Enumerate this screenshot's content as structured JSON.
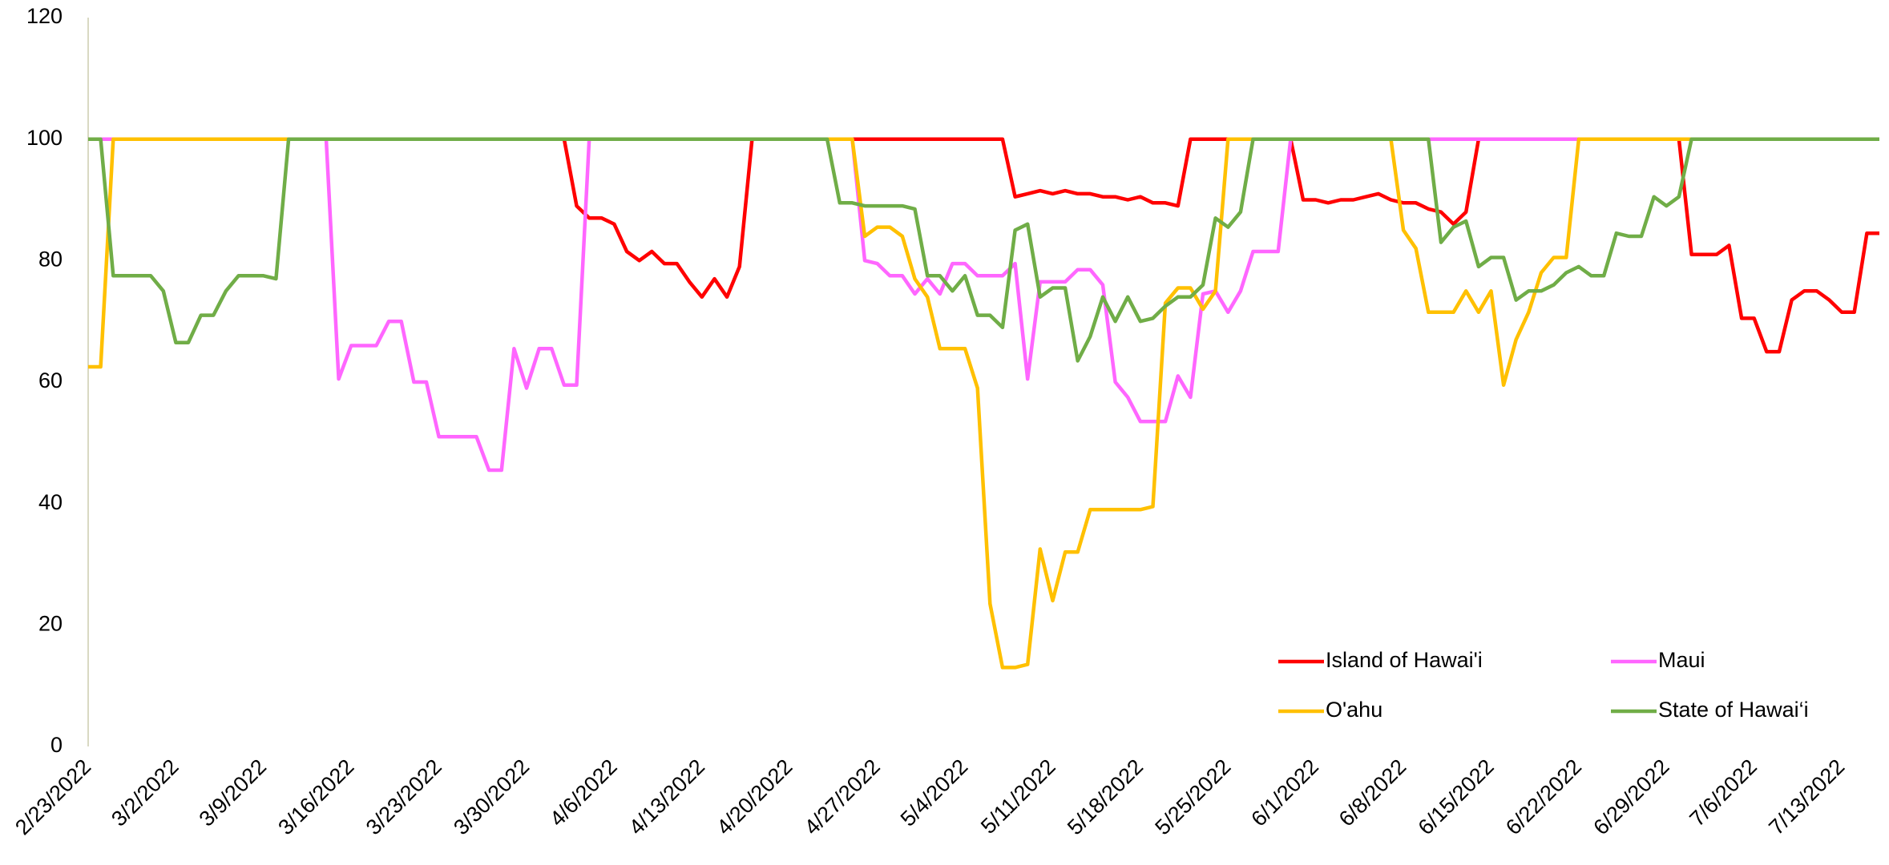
{
  "chart_data": {
    "type": "line",
    "categories": [
      "2/23/2022",
      null,
      null,
      null,
      null,
      null,
      null,
      "3/2/2022",
      null,
      null,
      null,
      null,
      null,
      null,
      "3/9/2022",
      null,
      null,
      null,
      null,
      null,
      null,
      "3/16/2022",
      null,
      null,
      null,
      null,
      null,
      null,
      "3/23/2022",
      null,
      null,
      null,
      null,
      null,
      null,
      "3/30/2022",
      null,
      null,
      null,
      null,
      null,
      null,
      "4/6/2022",
      null,
      null,
      null,
      null,
      null,
      null,
      "4/13/2022",
      null,
      null,
      null,
      null,
      null,
      null,
      "4/20/2022",
      null,
      null,
      null,
      null,
      null,
      null,
      "4/27/2022",
      null,
      null,
      null,
      null,
      null,
      null,
      "5/4/2022",
      null,
      null,
      null,
      null,
      null,
      null,
      "5/11/2022",
      null,
      null,
      null,
      null,
      null,
      null,
      "5/18/2022",
      null,
      null,
      null,
      null,
      null,
      null,
      "5/25/2022",
      null,
      null,
      null,
      null,
      null,
      null,
      "6/1/2022",
      null,
      null,
      null,
      null,
      null,
      null,
      "6/8/2022",
      null,
      null,
      null,
      null,
      null,
      null,
      "6/15/2022",
      null,
      null,
      null,
      null,
      null,
      null,
      "6/22/2022",
      null,
      null,
      null,
      null,
      null,
      null,
      "6/29/2022",
      null,
      null,
      null,
      null,
      null,
      null,
      "7/6/2022",
      null,
      null,
      null,
      null,
      null,
      null,
      "7/13/2022",
      null,
      null,
      null
    ],
    "series": [
      {
        "name": "Island of Hawai'i",
        "color": "#ff0000",
        "values": [
          100,
          100,
          100,
          100,
          100,
          100,
          100,
          100,
          100,
          100,
          100,
          100,
          100,
          100,
          100,
          100,
          100,
          100,
          100,
          100,
          100,
          100,
          100,
          100,
          100,
          100,
          100,
          100,
          100,
          100,
          100,
          100,
          100,
          100,
          100,
          100,
          100,
          100,
          100,
          89,
          87,
          87,
          86,
          81.5,
          80,
          81.5,
          79.5,
          79.5,
          76.5,
          74,
          77,
          74,
          79,
          100,
          100,
          100,
          100,
          100,
          100,
          100,
          100,
          100,
          100,
          100,
          100,
          100,
          100,
          100,
          100,
          100,
          100,
          100,
          100,
          100,
          90.5,
          91,
          91.5,
          91,
          91.5,
          91,
          91,
          90.5,
          90.5,
          90,
          90.5,
          89.5,
          89.5,
          89,
          100,
          100,
          100,
          100,
          100,
          100,
          100,
          100,
          100,
          90,
          90,
          89.5,
          90,
          90,
          90.5,
          91,
          90,
          89.5,
          89.5,
          88.5,
          88,
          86,
          88,
          100,
          100,
          100,
          100,
          100,
          100,
          100,
          100,
          100,
          100,
          100,
          100,
          100,
          100,
          100,
          100,
          100,
          81,
          81,
          81,
          82.5,
          70.5,
          70.5,
          65,
          65,
          73.5,
          75,
          75,
          73.5,
          71.5,
          71.5,
          84.5,
          84.5
        ]
      },
      {
        "name": "Maui",
        "color": "#ff66ff",
        "values": [
          100,
          100,
          100,
          100,
          100,
          100,
          100,
          100,
          100,
          100,
          100,
          100,
          100,
          100,
          100,
          100,
          100,
          100,
          100,
          100,
          60.5,
          66,
          66,
          66,
          70,
          70,
          60,
          60,
          51,
          51,
          51,
          51,
          45.5,
          45.5,
          65.5,
          59,
          65.5,
          65.5,
          59.5,
          59.5,
          100,
          100,
          100,
          100,
          100,
          100,
          100,
          100,
          100,
          100,
          100,
          100,
          100,
          100,
          100,
          100,
          100,
          100,
          100,
          100,
          100,
          100,
          80,
          79.5,
          77.5,
          77.5,
          74.5,
          77,
          74.5,
          79.5,
          79.5,
          77.5,
          77.5,
          77.5,
          79.5,
          60.5,
          76.5,
          76.5,
          76.5,
          78.5,
          78.5,
          76,
          60,
          57.5,
          53.5,
          53.5,
          53.5,
          61,
          57.5,
          74.5,
          75,
          71.5,
          75,
          81.5,
          81.5,
          81.5,
          100,
          100,
          100,
          100,
          100,
          100,
          100,
          100,
          100,
          100,
          100,
          100,
          100,
          100,
          100,
          100,
          100,
          100,
          100,
          100,
          100,
          100,
          100,
          100,
          100,
          100,
          100,
          100,
          100,
          100,
          100,
          100,
          100,
          100,
          100,
          100,
          100,
          100,
          100,
          100,
          100,
          100,
          100,
          100,
          100,
          100,
          100,
          100
        ]
      },
      {
        "name": "O'ahu",
        "color": "#ffc000",
        "values": [
          62.5,
          62.5,
          100,
          100,
          100,
          100,
          100,
          100,
          100,
          100,
          100,
          100,
          100,
          100,
          100,
          100,
          100,
          100,
          100,
          100,
          100,
          100,
          100,
          100,
          100,
          100,
          100,
          100,
          100,
          100,
          100,
          100,
          100,
          100,
          100,
          100,
          100,
          100,
          100,
          100,
          100,
          100,
          100,
          100,
          100,
          100,
          100,
          100,
          100,
          100,
          100,
          100,
          100,
          100,
          100,
          100,
          100,
          100,
          100,
          100,
          100,
          100,
          84,
          85.5,
          85.5,
          84,
          77,
          74,
          65.5,
          65.5,
          65.5,
          59,
          23.5,
          13,
          13,
          13.5,
          32.5,
          24,
          32,
          32,
          39,
          39,
          39,
          39,
          39,
          39.5,
          73,
          75.5,
          75.5,
          72,
          75,
          100,
          100,
          100,
          100,
          100,
          100,
          100,
          100,
          100,
          100,
          100,
          100,
          100,
          100,
          85,
          82,
          71.5,
          71.5,
          71.5,
          75,
          71.5,
          75,
          59.5,
          67,
          71.5,
          78,
          80.5,
          80.5,
          100,
          100,
          100,
          100,
          100,
          100,
          100,
          100,
          100,
          100,
          100,
          100,
          100,
          100,
          100,
          100,
          100,
          100,
          100,
          100,
          100,
          100,
          100,
          100,
          100
        ]
      },
      {
        "name": "State of Hawai‘i",
        "color": "#70ad47",
        "values": [
          100,
          100,
          77.5,
          77.5,
          77.5,
          77.5,
          75,
          66.5,
          66.5,
          71,
          71,
          75,
          77.5,
          77.5,
          77.5,
          77,
          100,
          100,
          100,
          100,
          100,
          100,
          100,
          100,
          100,
          100,
          100,
          100,
          100,
          100,
          100,
          100,
          100,
          100,
          100,
          100,
          100,
          100,
          100,
          100,
          100,
          100,
          100,
          100,
          100,
          100,
          100,
          100,
          100,
          100,
          100,
          100,
          100,
          100,
          100,
          100,
          100,
          100,
          100,
          100,
          89.5,
          89.5,
          89,
          89,
          89,
          89,
          88.5,
          77.5,
          77.5,
          75,
          77.5,
          71,
          71,
          69,
          85,
          86,
          74,
          75.5,
          75.5,
          63.5,
          67.5,
          74,
          70,
          74,
          70,
          70.5,
          72.5,
          74,
          74,
          76,
          87,
          85.5,
          88,
          100,
          100,
          100,
          100,
          100,
          100,
          100,
          100,
          100,
          100,
          100,
          100,
          100,
          100,
          100,
          83,
          85.5,
          86.5,
          79,
          80.5,
          80.5,
          73.5,
          75,
          75,
          76,
          78,
          79,
          77.5,
          77.5,
          84.5,
          84,
          84,
          90.5,
          89,
          90.5,
          100,
          100,
          100,
          100,
          100,
          100,
          100,
          100,
          100,
          100,
          100,
          100,
          100,
          100,
          100,
          100
        ]
      }
    ],
    "ylim": [
      0,
      120
    ],
    "yticks": [
      0,
      20,
      40,
      60,
      80,
      100,
      120
    ],
    "grid": false,
    "legend": "lower right"
  }
}
